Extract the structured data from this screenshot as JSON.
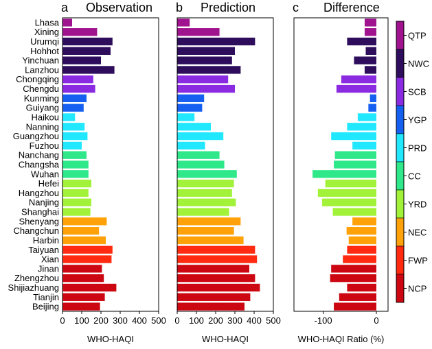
{
  "chart_data": {
    "type": "bar",
    "orientation": "horizontal",
    "categories": [
      "Lhasa",
      "Xining",
      "Urumqi",
      "Hohhot",
      "Yinchuan",
      "Lanzhou",
      "Chongqing",
      "Chengdu",
      "Kunming",
      "Guiyang",
      "Haikou",
      "Nanning",
      "Guangzhou",
      "Fuzhou",
      "Nanchang",
      "Changsha",
      "Wuhan",
      "Hefei",
      "Hangzhou",
      "Nanjing",
      "Shanghai",
      "Shenyang",
      "Changchun",
      "Harbin",
      "Taiyuan",
      "Xian",
      "Jinan",
      "Zhengzhou",
      "Shijiazhuang",
      "Tianjin",
      "Beijing"
    ],
    "region_of_city": [
      "QTP",
      "QTP",
      "NWC",
      "NWC",
      "NWC",
      "NWC",
      "SCB",
      "SCB",
      "YGP",
      "YGP",
      "PRD",
      "PRD",
      "PRD",
      "PRD",
      "CC",
      "CC",
      "CC",
      "YRD",
      "YRD",
      "YRD",
      "YRD",
      "NEC",
      "NEC",
      "NEC",
      "FWP",
      "FWP",
      "NCP",
      "NCP",
      "NCP",
      "NCP",
      "NCP"
    ],
    "panels": [
      {
        "letter": "a",
        "title": "Observation",
        "xlabel": "WHO-HAQI",
        "xlim": [
          0,
          500
        ],
        "xticks": [
          0,
          100,
          200,
          300,
          400,
          500
        ],
        "values": [
          50,
          180,
          260,
          250,
          200,
          270,
          160,
          170,
          125,
          110,
          65,
          115,
          130,
          100,
          125,
          135,
          135,
          150,
          135,
          150,
          145,
          230,
          190,
          225,
          260,
          255,
          205,
          215,
          280,
          220,
          195
        ]
      },
      {
        "letter": "b",
        "title": "Prediction",
        "xlabel": "WHO-HAQI",
        "xlim": [
          0,
          500
        ],
        "xticks": [
          0,
          100,
          200,
          300,
          400,
          500
        ],
        "values": [
          65,
          220,
          405,
          300,
          285,
          330,
          265,
          300,
          140,
          130,
          90,
          175,
          240,
          145,
          220,
          245,
          310,
          295,
          285,
          305,
          270,
          330,
          295,
          345,
          405,
          415,
          375,
          405,
          430,
          380,
          350
        ]
      },
      {
        "letter": "c",
        "title": "Difference",
        "xlabel": "WHO-HAQI Ratio (%)",
        "xlim": [
          -155,
          22
        ],
        "xticks": [
          -100,
          0
        ],
        "values": [
          -22,
          -22,
          -55,
          -20,
          -42,
          -22,
          -66,
          -75,
          -12,
          -15,
          -35,
          -55,
          -85,
          -45,
          -78,
          -80,
          -120,
          -96,
          -110,
          -102,
          -82,
          -45,
          -56,
          -52,
          -55,
          -63,
          -85,
          -87,
          -55,
          -70,
          -80
        ]
      }
    ],
    "legend": {
      "position": "right",
      "labels": [
        "QTP",
        "NWC",
        "SCB",
        "YGP",
        "PRD",
        "CC",
        "YRD",
        "NEC",
        "FWP",
        "NCP"
      ],
      "colors": [
        "#a0138e",
        "#2e0d5c",
        "#8a2be2",
        "#1560f0",
        "#22e8ff",
        "#2fe88a",
        "#a2f23a",
        "#ffa20a",
        "#ff2a10",
        "#cc0712"
      ]
    }
  }
}
